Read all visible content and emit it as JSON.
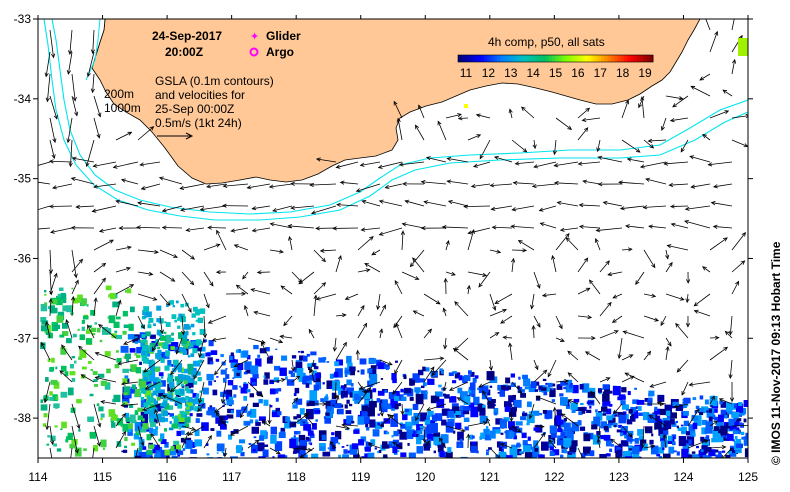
{
  "map": {
    "date": "24-Sep-2017",
    "time": "20:00Z",
    "legend": {
      "glider_label": "Glider",
      "argo_label": "Argo",
      "glider_color": "#ff00ff",
      "argo_color": "#ff00ff"
    },
    "contours": {
      "depth_a": "200m",
      "depth_b": "1000m",
      "color": "#00e5ee"
    },
    "info_lines": [
      "GSLA (0.1m contours)",
      "and velocities for",
      "25-Sep 00:00Z",
      "0.5m/s (1kt 24h)"
    ],
    "colorbar": {
      "title": "4h comp, p50, all sats",
      "labels": [
        "11",
        "12",
        "13",
        "14",
        "15",
        "16",
        "17",
        "18",
        "19"
      ],
      "colors": [
        "#000080",
        "#0000ff",
        "#0080ff",
        "#00c0c0",
        "#00c060",
        "#80ff00",
        "#ffff00",
        "#ff8000",
        "#ff0000",
        "#800000"
      ]
    },
    "axes": {
      "x_ticks": [
        "114",
        "115",
        "116",
        "117",
        "118",
        "119",
        "120",
        "121",
        "122",
        "123",
        "124",
        "125"
      ],
      "y_ticks": [
        "-33",
        "-34",
        "-35",
        "-36",
        "-37",
        "-38"
      ],
      "lon_range": [
        114,
        125
      ],
      "lat_range": [
        -38.5,
        -33
      ]
    },
    "land_color": "#ffc896",
    "credit": "© IMOS 11-Nov-2017 09:13 Hobart Time"
  }
}
